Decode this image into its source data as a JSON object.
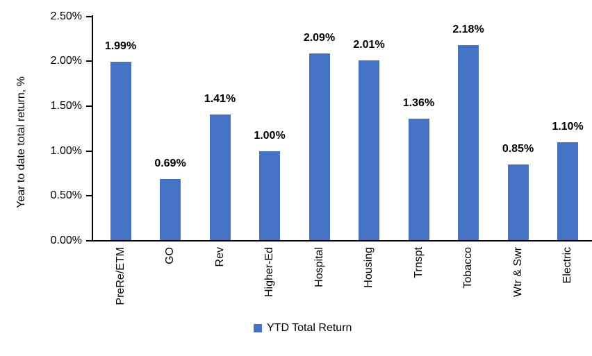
{
  "chart_data": {
    "type": "bar",
    "title": "",
    "xlabel": "",
    "ylabel": "Year to date total return, %",
    "categories": [
      "PreRe/ETM",
      "GO",
      "Rev",
      "Higher-Ed",
      "Hospital",
      "Housing",
      "Trnspt",
      "Tobacco",
      "Wtr & Swr",
      "Electric"
    ],
    "values": [
      1.99,
      0.69,
      1.41,
      1.0,
      2.09,
      2.01,
      1.36,
      2.18,
      0.85,
      1.1
    ],
    "value_labels": [
      "1.99%",
      "0.69%",
      "1.41%",
      "1.00%",
      "2.09%",
      "2.01%",
      "1.36%",
      "2.18%",
      "0.85%",
      "1.10%"
    ],
    "ylim": [
      0,
      2.5
    ],
    "ytick_values": [
      0,
      0.5,
      1.0,
      1.5,
      2.0,
      2.5
    ],
    "ytick_labels": [
      "0.00%",
      "0.50%",
      "1.00%",
      "1.50%",
      "2.00%",
      "2.50%"
    ],
    "grid": "off",
    "bar_color": "#4472C4",
    "axis_color": "#000000",
    "legend": {
      "position": "bottom",
      "entries": [
        {
          "label": "YTD Total Return",
          "color": "#4472C4"
        }
      ]
    }
  }
}
